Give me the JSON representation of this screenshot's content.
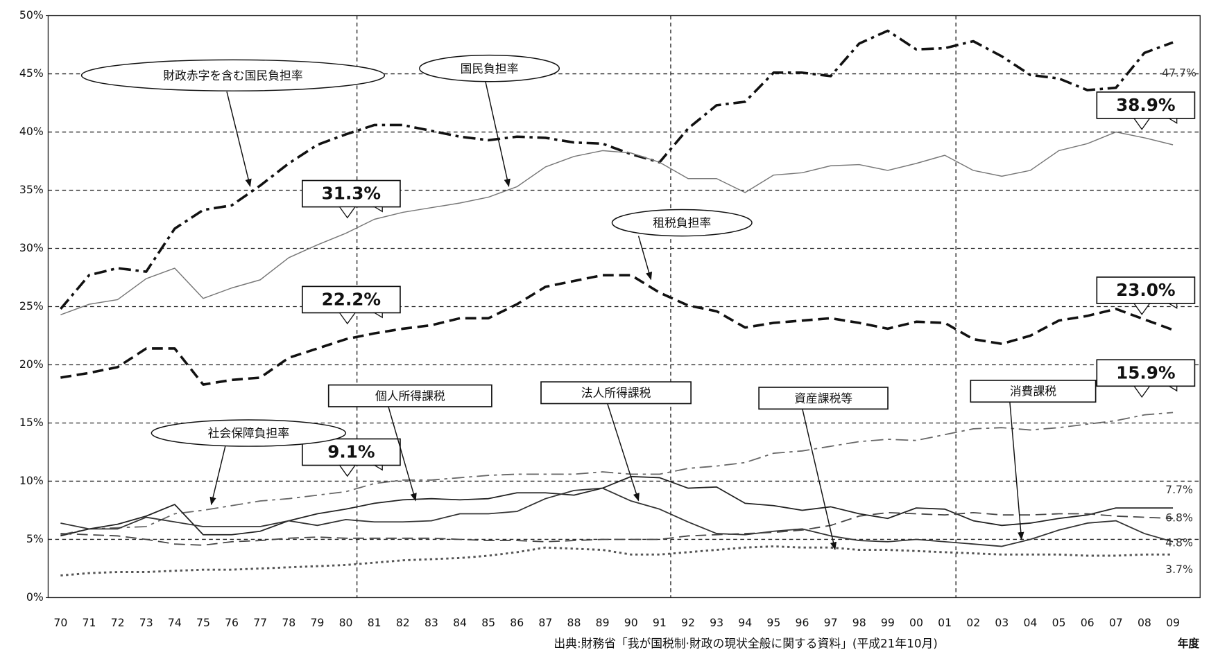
{
  "chart_data": {
    "type": "line",
    "categories": [
      "70",
      "71",
      "72",
      "73",
      "74",
      "75",
      "76",
      "77",
      "78",
      "79",
      "80",
      "81",
      "82",
      "83",
      "84",
      "85",
      "86",
      "87",
      "88",
      "89",
      "90",
      "91",
      "92",
      "93",
      "94",
      "95",
      "96",
      "97",
      "98",
      "99",
      "00",
      "01",
      "02",
      "03",
      "04",
      "05",
      "06",
      "07",
      "08",
      "09"
    ],
    "ylim": [
      0,
      50
    ],
    "yticks": [
      {
        "value": 0,
        "label": "0%"
      },
      {
        "value": 5,
        "label": "5%"
      },
      {
        "value": 10,
        "label": "10%"
      },
      {
        "value": 15,
        "label": "15%"
      },
      {
        "value": 20,
        "label": "20%"
      },
      {
        "value": 25,
        "label": "25%"
      },
      {
        "value": 30,
        "label": "30%"
      },
      {
        "value": 35,
        "label": "35%"
      },
      {
        "value": 40,
        "label": "40%"
      },
      {
        "value": 45,
        "label": "45%"
      },
      {
        "value": 50,
        "label": "50%"
      }
    ],
    "grid": true,
    "xlabel": "年度",
    "source": "出典:財務省「我が国税制·財政の現状全般に関する資料」(平成21年10月)",
    "series": [
      {
        "name": "財政赤字を含む国民負担率",
        "color": "#111111",
        "style": "dashdot",
        "width": 3.2,
        "values": [
          24.8,
          27.7,
          28.3,
          28.0,
          31.7,
          33.3,
          33.7,
          35.4,
          37.3,
          38.9,
          39.8,
          40.6,
          40.6,
          40.1,
          39.6,
          39.3,
          39.6,
          39.5,
          39.1,
          39.0,
          38.1,
          37.4,
          40.3,
          42.3,
          42.6,
          45.1,
          45.1,
          44.8,
          47.6,
          48.7,
          47.1,
          47.2,
          47.8,
          46.5,
          44.9,
          44.6,
          43.6,
          43.8,
          46.8,
          47.7
        ],
        "value_labels": [
          null,
          null,
          null,
          null,
          null,
          null,
          null,
          null,
          null,
          null,
          null,
          null,
          null,
          null,
          null,
          null,
          null,
          null,
          null,
          null,
          null,
          null,
          null,
          null,
          null,
          null,
          null,
          null,
          null,
          null,
          null,
          null,
          null,
          null,
          null,
          null,
          null,
          null,
          null,
          "47.7%"
        ]
      },
      {
        "name": "国民負担率",
        "color": "#777777",
        "style": "solid",
        "width": 1.3,
        "values": [
          24.3,
          25.2,
          25.6,
          27.4,
          28.3,
          25.7,
          26.6,
          27.3,
          29.2,
          30.3,
          31.3,
          32.5,
          33.1,
          33.5,
          33.9,
          34.4,
          35.3,
          37.0,
          37.9,
          38.4,
          38.2,
          37.4,
          36.0,
          36.0,
          34.8,
          36.3,
          36.5,
          37.1,
          37.2,
          36.7,
          37.3,
          38.0,
          36.7,
          36.2,
          36.7,
          38.4,
          39.0,
          40.0,
          39.5,
          38.9
        ],
        "value_labels": [
          null,
          null,
          null,
          null,
          null,
          null,
          null,
          null,
          null,
          null,
          "31.3%",
          null,
          null,
          null,
          null,
          null,
          null,
          null,
          null,
          null,
          null,
          null,
          null,
          null,
          null,
          null,
          null,
          null,
          null,
          null,
          null,
          null,
          null,
          null,
          null,
          null,
          null,
          null,
          null,
          "38.9%"
        ]
      },
      {
        "name": "租税負担率",
        "color": "#111111",
        "style": "dashed",
        "width": 3.2,
        "values": [
          18.9,
          19.3,
          19.8,
          21.4,
          21.4,
          18.3,
          18.7,
          18.9,
          20.6,
          21.4,
          22.2,
          22.7,
          23.1,
          23.4,
          24.0,
          24.0,
          25.2,
          26.7,
          27.2,
          27.7,
          27.7,
          26.2,
          25.1,
          24.6,
          23.2,
          23.6,
          23.8,
          24.0,
          23.6,
          23.1,
          23.7,
          23.6,
          22.2,
          21.8,
          22.5,
          23.8,
          24.2,
          24.8,
          23.9,
          23.0
        ],
        "value_labels": [
          null,
          null,
          null,
          null,
          null,
          null,
          null,
          null,
          null,
          null,
          "22.2%",
          null,
          null,
          null,
          null,
          null,
          null,
          null,
          null,
          null,
          null,
          null,
          null,
          null,
          null,
          null,
          null,
          null,
          null,
          null,
          null,
          null,
          null,
          null,
          null,
          null,
          null,
          null,
          null,
          "23.0%"
        ]
      },
      {
        "name": "社会保障負担率",
        "color": "#666666",
        "style": "dashdot",
        "width": 1.6,
        "values": [
          5.4,
          5.9,
          6.0,
          6.1,
          7.2,
          7.5,
          7.9,
          8.3,
          8.5,
          8.8,
          9.1,
          9.8,
          10.1,
          10.1,
          10.3,
          10.5,
          10.6,
          10.6,
          10.6,
          10.8,
          10.6,
          10.6,
          11.1,
          11.3,
          11.6,
          12.4,
          12.6,
          13.0,
          13.4,
          13.6,
          13.5,
          14.0,
          14.5,
          14.6,
          14.4,
          14.6,
          14.9,
          15.2,
          15.7,
          15.9
        ],
        "value_labels": [
          null,
          null,
          null,
          null,
          null,
          null,
          null,
          null,
          null,
          null,
          "9.1%",
          null,
          null,
          null,
          null,
          null,
          null,
          null,
          null,
          null,
          null,
          null,
          null,
          null,
          null,
          null,
          null,
          null,
          null,
          null,
          null,
          null,
          null,
          null,
          null,
          null,
          null,
          null,
          null,
          "15.9%"
        ]
      },
      {
        "name": "個人所得課税",
        "color": "#222222",
        "style": "solid",
        "width": 1.6,
        "values": [
          5.3,
          5.9,
          6.3,
          7.0,
          8.0,
          5.4,
          5.4,
          5.7,
          6.6,
          7.2,
          7.6,
          8.1,
          8.4,
          8.5,
          8.4,
          8.5,
          9.0,
          9.0,
          8.8,
          9.4,
          10.4,
          10.3,
          9.4,
          9.5,
          8.1,
          7.9,
          7.5,
          7.8,
          7.2,
          6.8,
          7.7,
          7.6,
          6.6,
          6.2,
          6.4,
          6.8,
          7.1,
          7.7,
          7.7,
          7.7
        ],
        "value_labels": [
          null,
          null,
          null,
          null,
          null,
          null,
          null,
          null,
          null,
          null,
          null,
          null,
          null,
          null,
          null,
          null,
          null,
          null,
          null,
          null,
          null,
          null,
          null,
          null,
          null,
          null,
          null,
          null,
          null,
          null,
          null,
          null,
          null,
          null,
          null,
          null,
          null,
          null,
          null,
          "7.7%"
        ]
      },
      {
        "name": "法人所得課税",
        "color": "#333333",
        "style": "solid",
        "width": 1.6,
        "values": [
          6.4,
          5.9,
          5.9,
          6.9,
          6.5,
          6.1,
          6.1,
          6.1,
          6.6,
          6.2,
          6.7,
          6.5,
          6.5,
          6.6,
          7.2,
          7.2,
          7.4,
          8.5,
          9.2,
          9.4,
          8.3,
          7.6,
          6.5,
          5.5,
          5.4,
          5.7,
          5.9,
          5.3,
          4.9,
          4.8,
          5.0,
          4.8,
          4.6,
          4.4,
          5.0,
          5.8,
          6.4,
          6.6,
          5.5,
          4.8
        ],
        "value_labels": [
          null,
          null,
          null,
          null,
          null,
          null,
          null,
          null,
          null,
          null,
          null,
          null,
          null,
          null,
          null,
          null,
          null,
          null,
          null,
          null,
          null,
          null,
          null,
          null,
          null,
          null,
          null,
          null,
          null,
          null,
          null,
          null,
          null,
          null,
          null,
          null,
          null,
          null,
          null,
          "4.8%"
        ]
      },
      {
        "name": "資産課税等",
        "color": "#555555",
        "style": "dotted",
        "width": 2.6,
        "values": [
          1.9,
          2.1,
          2.2,
          2.2,
          2.3,
          2.4,
          2.4,
          2.5,
          2.6,
          2.7,
          2.8,
          3.0,
          3.2,
          3.3,
          3.4,
          3.6,
          3.9,
          4.3,
          4.2,
          4.1,
          3.7,
          3.7,
          3.9,
          4.1,
          4.3,
          4.4,
          4.3,
          4.3,
          4.1,
          4.1,
          4.0,
          3.9,
          3.8,
          3.7,
          3.7,
          3.7,
          3.6,
          3.6,
          3.7,
          3.7
        ],
        "value_labels": [
          null,
          null,
          null,
          null,
          null,
          null,
          null,
          null,
          null,
          null,
          null,
          null,
          null,
          null,
          null,
          null,
          null,
          null,
          null,
          null,
          null,
          null,
          null,
          null,
          null,
          null,
          null,
          null,
          null,
          null,
          null,
          null,
          null,
          null,
          null,
          null,
          null,
          null,
          null,
          "3.7%"
        ]
      },
      {
        "name": "消費課税",
        "color": "#444444",
        "style": "dashed",
        "width": 1.6,
        "values": [
          5.5,
          5.4,
          5.3,
          5.0,
          4.6,
          4.5,
          4.8,
          4.9,
          5.1,
          5.2,
          5.1,
          5.1,
          5.1,
          5.1,
          5.0,
          4.9,
          4.9,
          4.8,
          4.9,
          5.0,
          5.0,
          5.0,
          5.3,
          5.4,
          5.5,
          5.6,
          5.8,
          6.2,
          7.0,
          7.3,
          7.2,
          7.1,
          7.3,
          7.1,
          7.1,
          7.2,
          7.2,
          7.0,
          6.9,
          6.8
        ],
        "value_labels": [
          null,
          null,
          null,
          null,
          null,
          null,
          null,
          null,
          null,
          null,
          null,
          null,
          null,
          null,
          null,
          null,
          null,
          null,
          null,
          null,
          null,
          null,
          null,
          null,
          null,
          null,
          null,
          null,
          null,
          null,
          null,
          null,
          null,
          null,
          null,
          null,
          null,
          null,
          null,
          "6.8%"
        ]
      }
    ]
  }
}
